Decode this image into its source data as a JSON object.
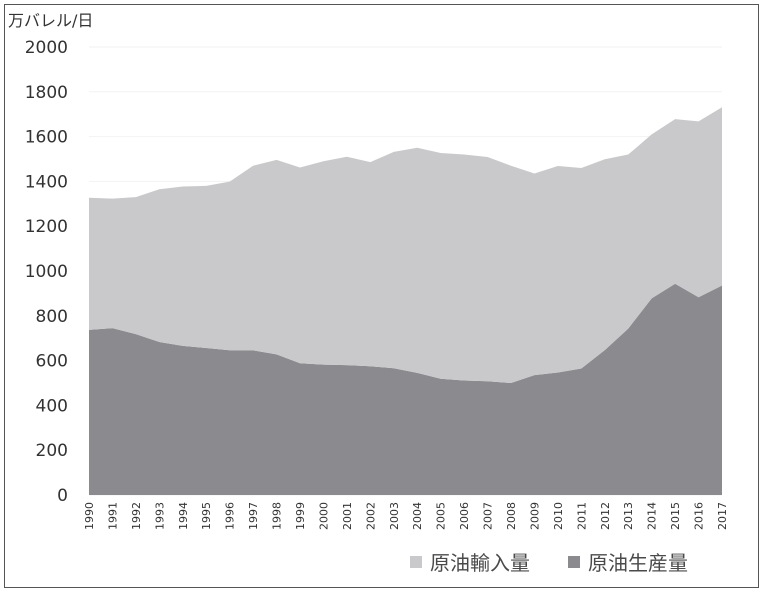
{
  "chart_data": {
    "type": "area",
    "stacked": true,
    "ylabel": "万バレル/日",
    "ylim": [
      0,
      2000
    ],
    "yticks": [
      0,
      200,
      400,
      600,
      800,
      1000,
      1200,
      1400,
      1600,
      1800,
      2000
    ],
    "grid": false,
    "legend_position": "bottom-right",
    "x": [
      "1990",
      "1991",
      "1992",
      "1993",
      "1994",
      "1995",
      "1996",
      "1997",
      "1998",
      "1999",
      "2000",
      "2001",
      "2002",
      "2003",
      "2004",
      "2005",
      "2006",
      "2007",
      "2008",
      "2009",
      "2010",
      "2011",
      "2012",
      "2013",
      "2014",
      "2015",
      "2016",
      "2017"
    ],
    "series": [
      {
        "name": "原油生産量",
        "color": "#8b8b8f",
        "values": [
          737,
          745,
          718,
          683,
          666,
          656,
          646,
          646,
          628,
          588,
          582,
          580,
          575,
          566,
          545,
          519,
          511,
          508,
          500,
          535,
          547,
          565,
          647,
          743,
          878,
          943,
          883,
          935
        ]
      },
      {
        "name": "原油輸入量",
        "color": "#c9c9cb",
        "values": [
          590,
          578,
          612,
          682,
          711,
          724,
          753,
          824,
          868,
          874,
          908,
          930,
          911,
          966,
          1005,
          1008,
          1009,
          1001,
          970,
          900,
          922,
          895,
          852,
          777,
          732,
          735,
          785,
          796
        ]
      }
    ],
    "legend": [
      "原油輸入量",
      "原油生産量"
    ]
  }
}
